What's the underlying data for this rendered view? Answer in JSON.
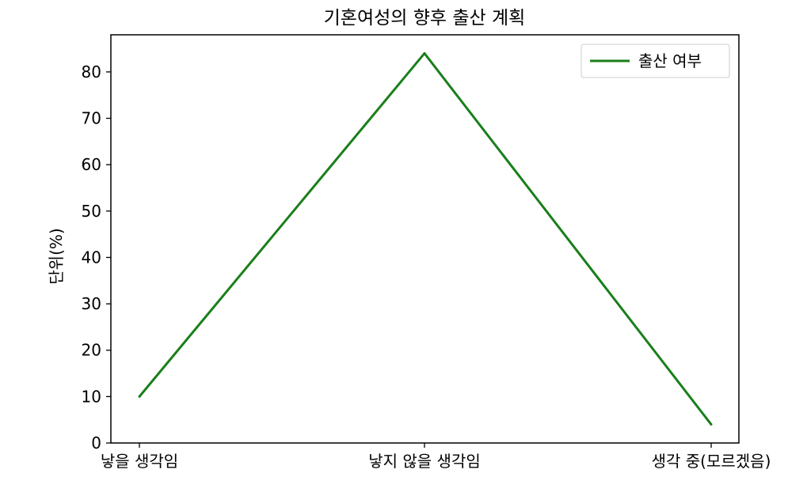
{
  "chart_data": {
    "type": "line",
    "title": "기혼여성의 향후 출산 계획",
    "ylabel": "단위(%)",
    "xlabel": "",
    "categories": [
      "낳을 생각임",
      "낳지 않을 생각임",
      "생각 중(모르겠음)"
    ],
    "series": [
      {
        "name": "출산 여부",
        "values": [
          10,
          84,
          4
        ],
        "color": "#1a7f1a"
      }
    ],
    "ylim": [
      0,
      88
    ],
    "yticks": [
      0,
      10,
      20,
      30,
      40,
      50,
      60,
      70,
      80
    ],
    "grid": false,
    "legend": "top-right"
  }
}
